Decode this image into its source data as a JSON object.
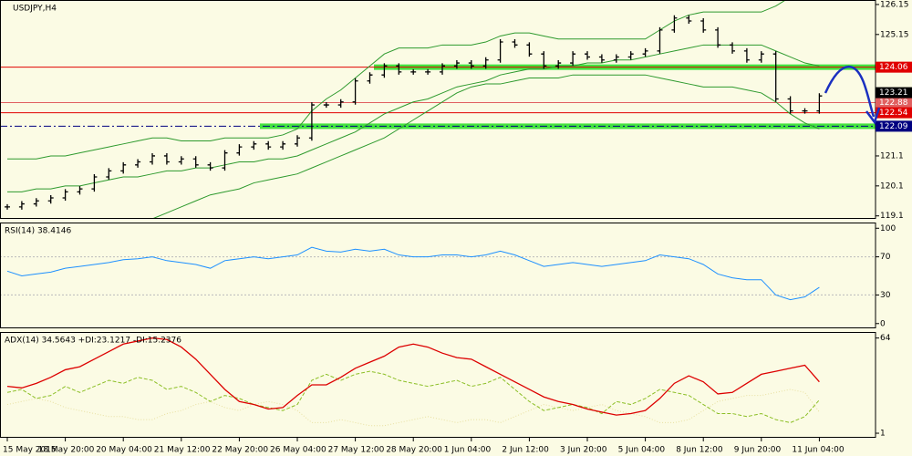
{
  "chart_data": [
    {
      "type": "ohlc",
      "title": "USDJPY,H4",
      "close": [
        119.4,
        119.5,
        119.6,
        119.7,
        119.9,
        120.0,
        120.4,
        120.6,
        120.8,
        120.9,
        121.1,
        120.9,
        121.0,
        120.8,
        120.7,
        121.2,
        121.4,
        121.5,
        121.4,
        121.5,
        121.7,
        122.8,
        122.8,
        122.9,
        123.6,
        123.8,
        124.1,
        123.9,
        123.9,
        123.9,
        124.1,
        124.2,
        124.1,
        124.3,
        124.9,
        124.8,
        124.5,
        124.1,
        124.2,
        124.5,
        124.4,
        124.3,
        124.4,
        124.5,
        124.6,
        125.3,
        125.7,
        125.6,
        125.3,
        124.8,
        124.6,
        124.3,
        124.5,
        123.0,
        122.6,
        122.6,
        123.1
      ],
      "color": "#000000",
      "bands": {
        "color": "#2e9a2e",
        "upper": [
          121.0,
          121.0,
          121.0,
          121.1,
          121.1,
          121.2,
          121.3,
          121.4,
          121.5,
          121.6,
          121.7,
          121.7,
          121.6,
          121.6,
          121.6,
          121.7,
          121.7,
          121.7,
          121.7,
          121.8,
          122.0,
          122.6,
          123.0,
          123.3,
          123.7,
          124.1,
          124.5,
          124.7,
          124.7,
          124.7,
          124.8,
          124.8,
          124.8,
          124.9,
          125.1,
          125.2,
          125.2,
          125.1,
          125.0,
          125.0,
          125.0,
          125.0,
          125.0,
          125.0,
          125.0,
          125.3,
          125.6,
          125.8,
          125.9,
          125.9,
          125.9,
          125.9,
          125.9,
          126.1,
          126.4,
          126.5,
          126.4
        ],
        "middle": [
          119.9,
          119.9,
          120.0,
          120.0,
          120.1,
          120.1,
          120.2,
          120.3,
          120.4,
          120.4,
          120.5,
          120.6,
          120.6,
          120.7,
          120.7,
          120.8,
          120.9,
          120.9,
          121.0,
          121.0,
          121.1,
          121.3,
          121.5,
          121.7,
          121.9,
          122.2,
          122.5,
          122.7,
          122.9,
          123.0,
          123.2,
          123.4,
          123.5,
          123.6,
          123.8,
          123.9,
          124.0,
          124.0,
          124.1,
          124.1,
          124.2,
          124.2,
          124.3,
          124.3,
          124.4,
          124.5,
          124.6,
          124.7,
          124.8,
          124.8,
          124.8,
          124.8,
          124.8,
          124.6,
          124.4,
          124.2,
          124.1
        ],
        "lower": [
          118.8,
          118.8,
          118.8,
          118.8,
          118.9,
          118.9,
          118.9,
          118.9,
          119.0,
          119.0,
          119.0,
          119.2,
          119.4,
          119.6,
          119.8,
          119.9,
          120.0,
          120.2,
          120.3,
          120.4,
          120.5,
          120.7,
          120.9,
          121.1,
          121.3,
          121.5,
          121.7,
          122.0,
          122.3,
          122.6,
          122.9,
          123.2,
          123.4,
          123.5,
          123.5,
          123.6,
          123.7,
          123.7,
          123.7,
          123.8,
          123.8,
          123.8,
          123.8,
          123.8,
          123.8,
          123.7,
          123.6,
          123.5,
          123.4,
          123.4,
          123.4,
          123.3,
          123.2,
          122.9,
          122.5,
          122.2,
          122.0
        ]
      },
      "ylim": [
        119.0,
        126.3
      ],
      "yticks": [
        126.15,
        125.15,
        121.1,
        120.1,
        119.1
      ],
      "levels": [
        {
          "value": 124.06,
          "color": "#e00000",
          "zone": "#22dd22"
        },
        {
          "value": 122.88,
          "color": "#e06060"
        },
        {
          "value": 122.54,
          "color": "#e00000"
        },
        {
          "value": 122.09,
          "color": "#000080",
          "zone": "#22dd22"
        }
      ],
      "current_price": {
        "value": 123.21,
        "color": "#000000"
      }
    },
    {
      "type": "line",
      "title": "RSI(14) 38.4146",
      "values": [
        55,
        50,
        52,
        54,
        58,
        60,
        62,
        64,
        67,
        68,
        70,
        66,
        64,
        62,
        58,
        66,
        68,
        70,
        68,
        70,
        72,
        80,
        76,
        75,
        78,
        76,
        78,
        72,
        70,
        70,
        72,
        72,
        70,
        72,
        76,
        72,
        66,
        60,
        62,
        64,
        62,
        60,
        62,
        64,
        66,
        72,
        70,
        68,
        62,
        52,
        48,
        46,
        46,
        30,
        25,
        28,
        38
      ],
      "color": "#1e90ff",
      "ylim": [
        -5,
        106
      ],
      "yticks": [
        100,
        70,
        30,
        0
      ],
      "levels": [
        70,
        30
      ]
    },
    {
      "type": "multiline",
      "title": "ADX(14) 34.5643 +DI:23.1217 -DI:15.2376",
      "series": [
        {
          "values": [
            32,
            31,
            34,
            38,
            43,
            45,
            50,
            55,
            60,
            62,
            64,
            63,
            58,
            50,
            40,
            30,
            22,
            20,
            17,
            18,
            26,
            33,
            33,
            38,
            44,
            48,
            52,
            58,
            60,
            58,
            54,
            51,
            50,
            45,
            40,
            35,
            30,
            25,
            22,
            20,
            17,
            15,
            13,
            14,
            16,
            24,
            34,
            39,
            35,
            27,
            28,
            34,
            40,
            42,
            44,
            46,
            35
          ],
          "color": "#dd0000",
          "dash": "none"
        },
        {
          "values": [
            28,
            30,
            24,
            26,
            32,
            28,
            32,
            36,
            34,
            38,
            36,
            30,
            32,
            28,
            22,
            26,
            24,
            20,
            18,
            16,
            20,
            36,
            40,
            36,
            40,
            42,
            40,
            36,
            34,
            32,
            34,
            36,
            32,
            34,
            38,
            30,
            22,
            16,
            18,
            20,
            18,
            14,
            22,
            20,
            24,
            30,
            28,
            26,
            20,
            14,
            14,
            12,
            14,
            10,
            8,
            12,
            23
          ],
          "color": "#8cbf26",
          "dash": "4 2"
        },
        {
          "values": [
            20,
            22,
            24,
            22,
            18,
            16,
            14,
            12,
            12,
            10,
            10,
            14,
            16,
            20,
            22,
            18,
            16,
            20,
            22,
            20,
            16,
            8,
            8,
            10,
            8,
            6,
            6,
            8,
            10,
            12,
            10,
            8,
            10,
            10,
            8,
            12,
            16,
            20,
            18,
            16,
            18,
            20,
            16,
            14,
            12,
            8,
            8,
            10,
            16,
            22,
            24,
            26,
            26,
            28,
            30,
            28,
            15
          ],
          "color": "#e8e0a0",
          "dash": "1 2"
        }
      ],
      "ylim": [
        -2,
        68
      ],
      "yticks": [
        64,
        1
      ],
      "categories": [
        "15 May 2015",
        null,
        null,
        null,
        "18 May 20:00",
        null,
        null,
        null,
        "20 May 04:00",
        null,
        null,
        null,
        "21 May 12:00",
        null,
        null,
        null,
        "22 May 20:00",
        null,
        null,
        null,
        "26 May 04:00",
        null,
        null,
        null,
        "27 May 12:00",
        null,
        null,
        null,
        "28 May 20:00",
        null,
        null,
        null,
        "1 Jun 04:00",
        null,
        null,
        null,
        "2 Jun 12:00",
        null,
        null,
        null,
        "3 Jun 20:00",
        null,
        null,
        null,
        "5 Jun 04:00",
        null,
        null,
        null,
        "8 Jun 12:00",
        null,
        null,
        null,
        "9 Jun 20:00",
        null,
        null,
        null,
        "11 Jun 04:00"
      ]
    }
  ]
}
